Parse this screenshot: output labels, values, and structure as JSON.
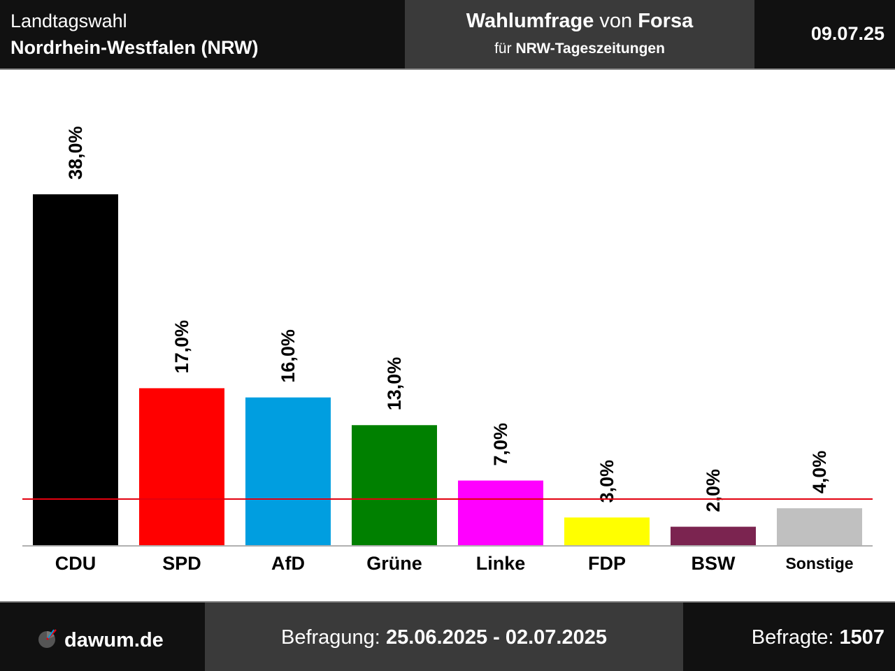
{
  "header": {
    "title_line1": "Landtagswahl",
    "title_line2": "Nordrhein-Westfalen (NRW)",
    "poll_word": "Wahlumfrage",
    "poll_by": "von",
    "institute": "Forsa",
    "client_prefix": "für",
    "client": "NRW-Tageszeitungen",
    "date": "09.07.25"
  },
  "footer": {
    "site": "dawum.de",
    "period_label": "Befragung:",
    "period": "25.06.2025 - 02.07.2025",
    "respondents_label": "Befragte:",
    "respondents": "1507"
  },
  "chart_data": {
    "type": "bar",
    "categories": [
      "CDU",
      "SPD",
      "AfD",
      "Grüne",
      "Linke",
      "FDP",
      "BSW",
      "Sonstige"
    ],
    "values": [
      38.0,
      17.0,
      16.0,
      13.0,
      7.0,
      3.0,
      2.0,
      4.0
    ],
    "value_labels": [
      "38,0%",
      "17,0%",
      "16,0%",
      "13,0%",
      "7,0%",
      "3,0%",
      "2,0%",
      "4,0%"
    ],
    "colors": [
      "#000000",
      "#ff0000",
      "#009ee0",
      "#008000",
      "#ff00ff",
      "#ffff00",
      "#7b2450",
      "#c0c0c0"
    ],
    "threshold": 5.0,
    "threshold_color": "#e3000f",
    "ylim": [
      0,
      38.0
    ],
    "grid": false,
    "legend": "none"
  }
}
